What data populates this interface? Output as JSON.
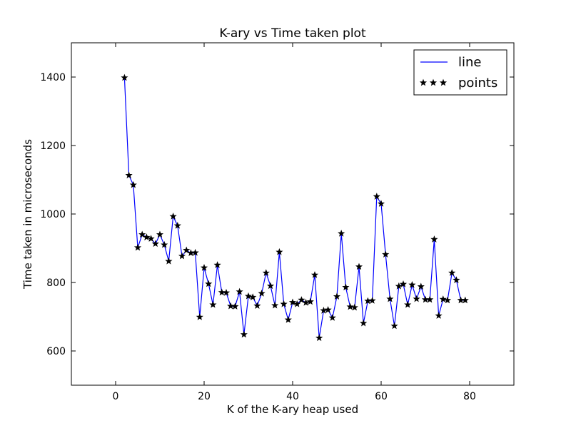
{
  "chart_data": {
    "type": "line",
    "title": "K-ary vs Time taken plot",
    "xlabel": "K of the K-ary heap used",
    "ylabel": "Time taken in microseconds",
    "xlim": [
      -10,
      90
    ],
    "ylim": [
      500,
      1500
    ],
    "xticks": [
      0,
      20,
      40,
      60,
      80
    ],
    "yticks": [
      600,
      800,
      1000,
      1200,
      1400
    ],
    "grid": false,
    "legend_position": "top-right",
    "legend": [
      {
        "label": "line",
        "style": "line",
        "color": "#0000ff"
      },
      {
        "label": "points",
        "style": "star-markers",
        "color": "#000000"
      }
    ],
    "x": [
      2,
      3,
      4,
      5,
      6,
      7,
      8,
      9,
      10,
      11,
      12,
      13,
      14,
      15,
      16,
      17,
      18,
      19,
      20,
      21,
      22,
      23,
      24,
      25,
      26,
      27,
      28,
      29,
      30,
      31,
      32,
      33,
      34,
      35,
      36,
      37,
      38,
      39,
      40,
      41,
      42,
      43,
      44,
      45,
      46,
      47,
      48,
      49,
      50,
      51,
      52,
      53,
      54,
      55,
      56,
      57,
      58,
      59,
      60,
      61,
      62,
      63,
      64,
      65,
      66,
      67,
      68,
      69,
      70,
      71,
      72,
      73,
      74,
      75,
      76,
      77,
      78,
      79
    ],
    "y": [
      1398,
      1113,
      1085,
      902,
      940,
      932,
      928,
      913,
      940,
      910,
      862,
      993,
      966,
      877,
      894,
      886,
      887,
      699,
      843,
      796,
      735,
      851,
      771,
      770,
      731,
      730,
      773,
      648,
      760,
      757,
      732,
      768,
      828,
      790,
      733,
      889,
      737,
      691,
      742,
      737,
      749,
      741,
      744,
      822,
      638,
      718,
      720,
      697,
      759,
      943,
      786,
      729,
      727,
      846,
      681,
      746,
      747,
      1051,
      1030,
      882,
      752,
      673,
      789,
      795,
      735,
      793,
      752,
      788,
      750,
      750,
      926,
      703,
      751,
      748,
      828,
      807,
      748,
      748
    ],
    "series": [
      {
        "name": "line",
        "color": "#0000ff",
        "marker": "none"
      },
      {
        "name": "points",
        "color": "#000000",
        "marker": "star"
      }
    ]
  }
}
